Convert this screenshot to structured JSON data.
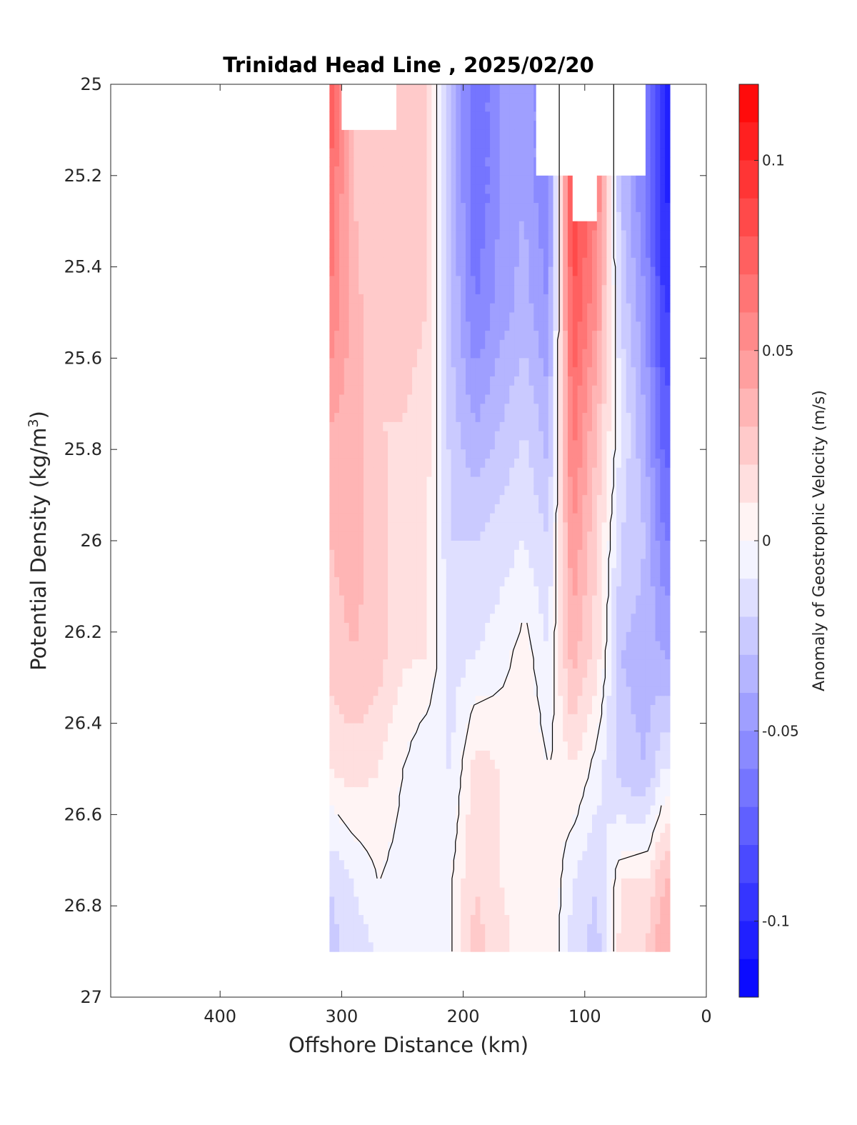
{
  "chart_data": {
    "type": "heatmap",
    "title": "Trinidad Head Line , 2025/02/20",
    "xlabel": "Offshore Distance (km)",
    "ylabel_main": "Potential Density (kg/m",
    "ylabel_sup": "3",
    "ylabel_close": ")",
    "colorbar_label": "Anomaly of Geostrophic Velocity (m/s)",
    "xlim": [
      490,
      0
    ],
    "ylim": [
      25,
      27
    ],
    "y_reversed": true,
    "x_ticks": [
      400,
      300,
      200,
      100,
      0
    ],
    "x_tick_labels": [
      "400",
      "300",
      "200",
      "100",
      "0"
    ],
    "y_ticks": [
      25,
      25.2,
      25.4,
      25.6,
      25.8,
      26,
      26.2,
      26.4,
      26.6,
      26.8,
      27
    ],
    "y_tick_labels": [
      "25",
      "25.2",
      "25.4",
      "25.6",
      "25.8",
      "26",
      "26.2",
      "26.4",
      "26.6",
      "26.8",
      "27"
    ],
    "colorbar_range": [
      -0.12,
      0.12
    ],
    "colorbar_levels": 24,
    "colorbar_ticks": [
      0.1,
      0.05,
      0,
      -0.05,
      -0.1
    ],
    "colorbar_tick_labels": [
      "0.1",
      "0.05",
      "0",
      "-0.05",
      "-0.1"
    ],
    "colormap": [
      "#0000ff",
      "#ffffff",
      "#ff0000"
    ],
    "zero_contour_color": "#000000",
    "data_extent_x": [
      310,
      30
    ],
    "data_extent_y": [
      25,
      26.9
    ],
    "stations_km": [
      310,
      290,
      270,
      250,
      230,
      210,
      190,
      170,
      150,
      130,
      110,
      90,
      70,
      50,
      35
    ],
    "densities": [
      25,
      25.25,
      25.5,
      25.75,
      26,
      26.25,
      26.5,
      26.75,
      26.9
    ],
    "velocity_grid": [
      [
        0.08,
        0.03,
        0.02,
        0.03,
        0.02,
        -0.03,
        -0.07,
        -0.05,
        -0.04,
        -0.06,
        0.09,
        0.06,
        -0.03,
        -0.06,
        -0.1
      ],
      [
        0.07,
        0.03,
        0.02,
        0.03,
        0.02,
        -0.03,
        -0.07,
        -0.05,
        -0.04,
        -0.06,
        0.09,
        0.06,
        -0.03,
        -0.06,
        -0.1
      ],
      [
        0.06,
        0.035,
        0.02,
        0.025,
        0.02,
        -0.03,
        -0.06,
        -0.045,
        -0.035,
        -0.05,
        0.08,
        0.05,
        -0.02,
        -0.05,
        -0.09
      ],
      [
        0.04,
        0.035,
        0.02,
        0.02,
        0.015,
        -0.025,
        -0.04,
        -0.03,
        -0.02,
        -0.035,
        0.065,
        0.03,
        -0.01,
        -0.04,
        -0.075
      ],
      [
        0.03,
        0.035,
        0.025,
        0.015,
        0.012,
        -0.02,
        -0.02,
        -0.015,
        -0.01,
        -0.02,
        0.05,
        0.02,
        -0.02,
        -0.03,
        -0.06
      ],
      [
        0.025,
        0.03,
        0.025,
        0.012,
        0.01,
        -0.015,
        -0.01,
        -0.005,
        0.005,
        -0.01,
        0.035,
        0.015,
        -0.03,
        -0.035,
        -0.04
      ],
      [
        0.01,
        0.015,
        0.01,
        0.0,
        -0.01,
        -0.01,
        0.015,
        0.01,
        0.01,
        0.0,
        0.01,
        -0.005,
        -0.025,
        -0.03,
        -0.01
      ],
      [
        -0.02,
        -0.01,
        0.0,
        -0.005,
        -0.01,
        0.0,
        0.02,
        0.01,
        0.005,
        0.01,
        -0.01,
        -0.02,
        0.01,
        0.01,
        0.03
      ],
      [
        -0.025,
        -0.015,
        -0.01,
        -0.005,
        -0.01,
        0.0,
        0.025,
        0.015,
        0.005,
        0.01,
        -0.015,
        -0.025,
        0.015,
        0.02,
        0.04
      ]
    ],
    "masked_regions": [
      {
        "x_km": [
          300,
          255
        ],
        "y_top": 25,
        "y_bottom": 25.1
      },
      {
        "x_km": [
          140,
          50
        ],
        "y_top": 25,
        "y_bottom": 25.2
      },
      {
        "x_km": [
          110,
          90
        ],
        "y_top": 25,
        "y_bottom": 25.3
      }
    ]
  }
}
